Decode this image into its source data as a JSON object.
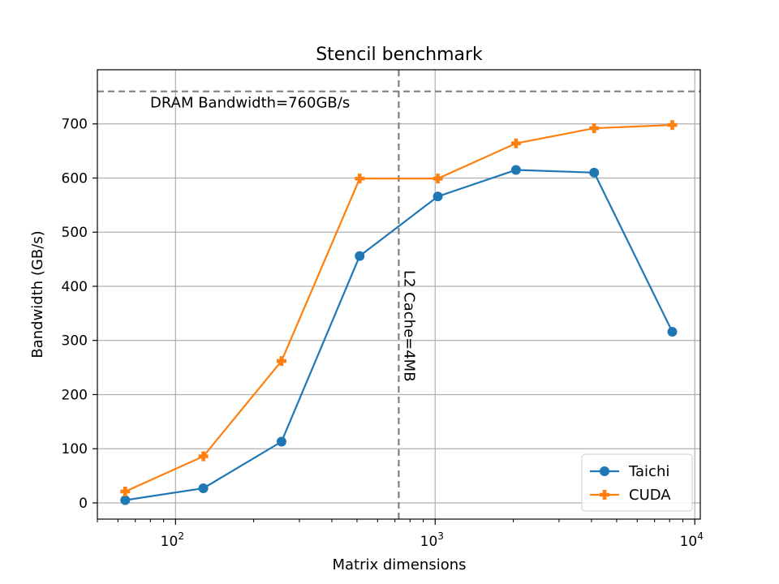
{
  "chart_data": {
    "type": "line",
    "title": "Stencil benchmark",
    "xlabel": "Matrix dimensions",
    "ylabel": "Bandwidth (GB/s)",
    "xscale": "log",
    "xlim": [
      50,
      10500
    ],
    "ylim": [
      -30,
      800
    ],
    "grid": true,
    "legend_position": "bottom-right",
    "x_ticks": [
      100,
      1000,
      10000
    ],
    "x_tick_labels": [
      {
        "base": "10",
        "exp": "2"
      },
      {
        "base": "10",
        "exp": "3"
      },
      {
        "base": "10",
        "exp": "4"
      }
    ],
    "y_ticks": [
      0,
      100,
      200,
      300,
      400,
      500,
      600,
      700
    ],
    "y_tick_labels": [
      "0",
      "100",
      "200",
      "300",
      "400",
      "500",
      "600",
      "700"
    ],
    "x": [
      64,
      128,
      256,
      512,
      1024,
      2048,
      4096,
      8192
    ],
    "series": [
      {
        "name": "Taichi",
        "marker": "circle",
        "color": "#1f77b4",
        "values": [
          5,
          27,
          113,
          456,
          566,
          615,
          610,
          316
        ]
      },
      {
        "name": "CUDA",
        "marker": "plus",
        "color": "#ff7f0e",
        "values": [
          21,
          86,
          262,
          599,
          599,
          664,
          692,
          698
        ]
      }
    ],
    "reference_lines": [
      {
        "orientation": "horizontal",
        "value": 760,
        "color": "#808080",
        "style": "dashed",
        "label": "DRAM Bandwidth=760GB/s"
      },
      {
        "orientation": "vertical",
        "value": 724,
        "color": "#808080",
        "style": "dashed",
        "label": "L2 Cache=4MB"
      }
    ]
  }
}
